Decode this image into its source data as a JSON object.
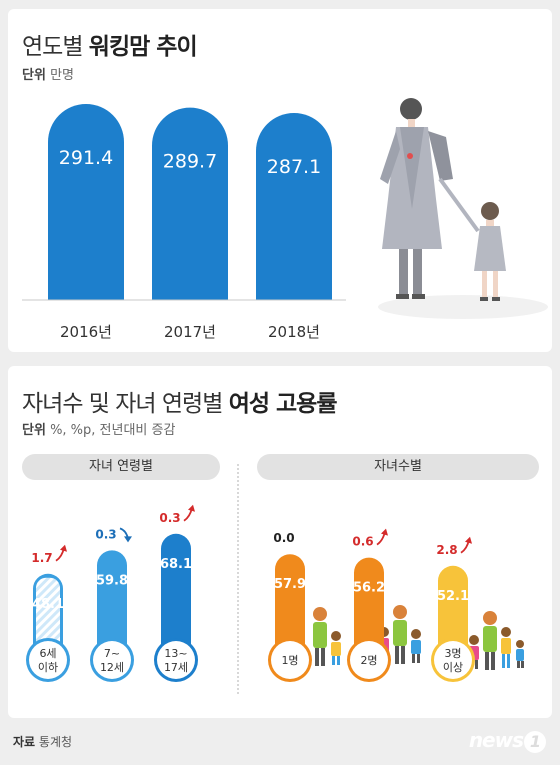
{
  "top": {
    "title_prefix": "연도별 ",
    "title_bold": "워킹맘 추이",
    "unit_label": "단위",
    "unit_value": "만명"
  },
  "bottom": {
    "title_prefix": "자녀수 및 자녀 연령별 ",
    "title_bold": "여성 고용률",
    "unit_label": "단위",
    "unit_value": "%, %p, 전년대비 증감",
    "age_tab": "자녀 연령별",
    "count_tab": "자녀수별"
  },
  "footer": {
    "source_label": "자료",
    "source_value": "통계청",
    "logo": "news",
    "logo_mark": "1"
  },
  "colors": {
    "blue_dark": "#1d7fcc",
    "blue_light": "#3a9fe0",
    "orange": "#f08a1c",
    "yellow": "#f7c33a",
    "up_arrow": "#d42b2b",
    "down_arrow": "#1d6fb8"
  },
  "chart_data": [
    {
      "type": "bar",
      "categories": [
        "2016년",
        "2017년",
        "2018년"
      ],
      "values": [
        291.4,
        289.7,
        287.1
      ],
      "value_labels": [
        "291.4",
        "289.7",
        "287.1"
      ],
      "title": "연도별 워킹맘 추이",
      "ylabel": "만명"
    },
    {
      "type": "bar",
      "categories": [
        "6세 이하",
        "7~12세",
        "13~17세"
      ],
      "category_lines": [
        [
          "6세",
          "이하"
        ],
        [
          "7~",
          "12세"
        ],
        [
          "13~",
          "17세"
        ]
      ],
      "values": [
        48.1,
        59.8,
        68.1
      ],
      "value_labels": [
        "48.1",
        "59.8",
        "68.1"
      ],
      "changes": [
        1.7,
        0.3,
        0.3
      ],
      "change_labels": [
        "1.7",
        "0.3",
        "0.3"
      ],
      "change_direction": [
        "up",
        "down",
        "up"
      ],
      "title": "자녀 연령별"
    },
    {
      "type": "bar",
      "categories": [
        "1명",
        "2명",
        "3명 이상"
      ],
      "category_lines": [
        [
          "1명"
        ],
        [
          "2명"
        ],
        [
          "3명",
          "이상"
        ]
      ],
      "values": [
        57.9,
        56.2,
        52.1
      ],
      "value_labels": [
        "57.9",
        "56.2",
        "52.1"
      ],
      "changes": [
        0.0,
        0.6,
        2.8
      ],
      "change_labels": [
        "0.0",
        "0.6",
        "2.8"
      ],
      "change_direction": [
        "none",
        "up",
        "up"
      ],
      "title": "자녀수별"
    }
  ]
}
